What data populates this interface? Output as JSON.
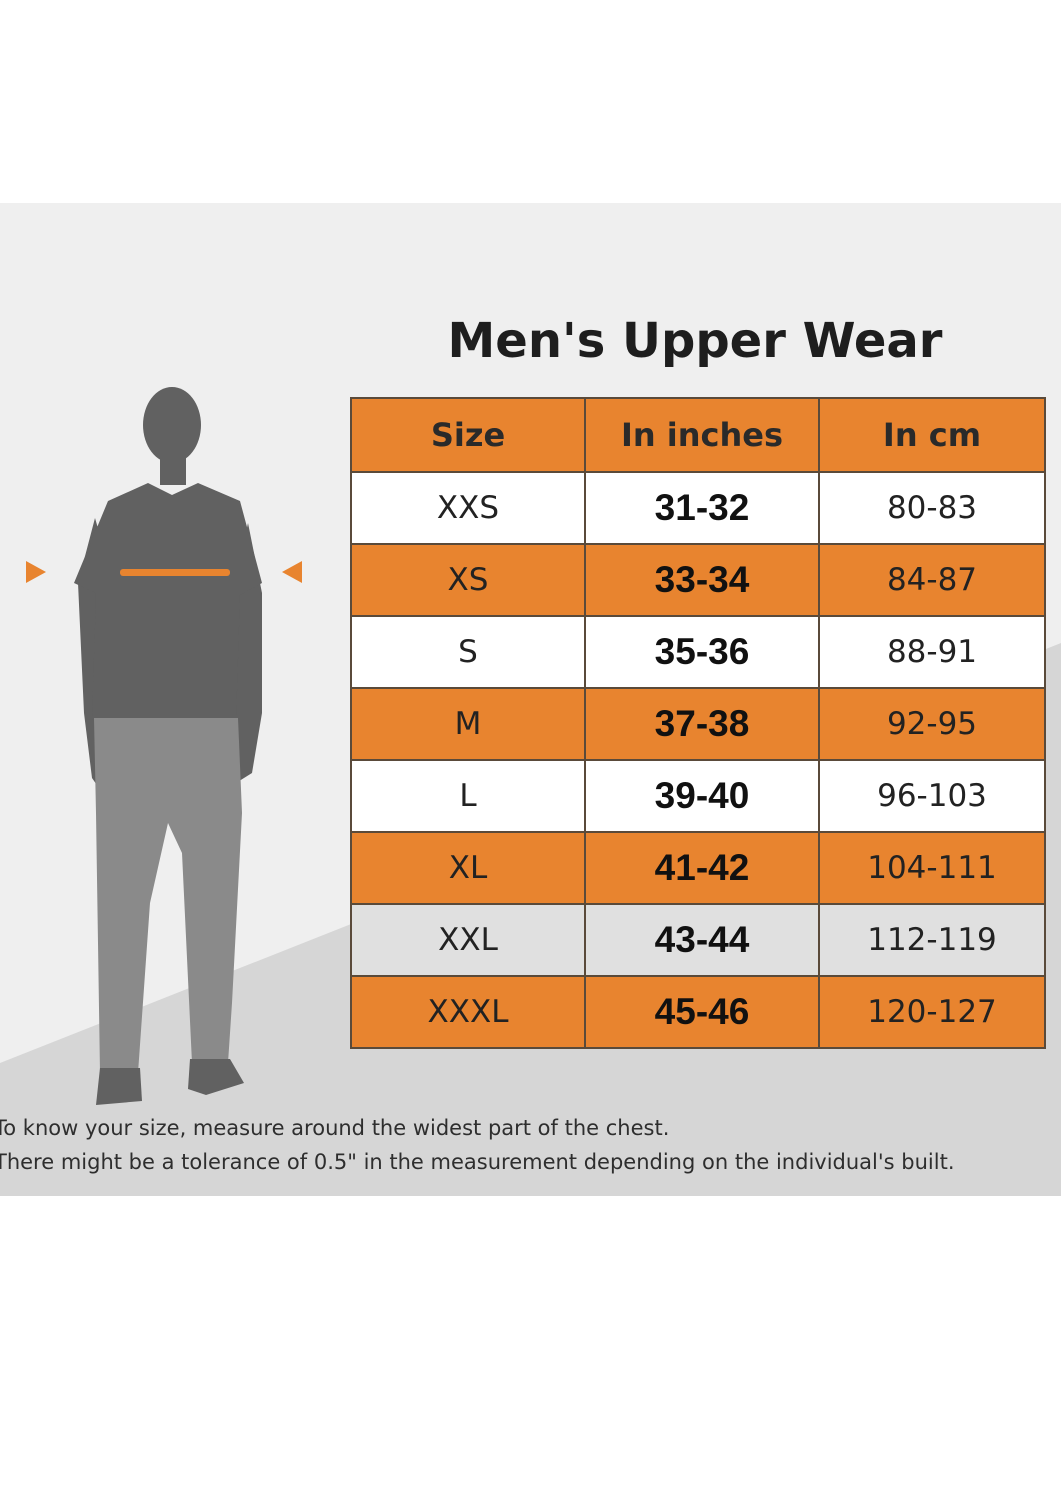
{
  "title": "Men's Upper Wear",
  "table": {
    "headers": [
      "Size",
      "In inches",
      "In cm"
    ],
    "rows": [
      {
        "size": "XXS",
        "inches": "31-32",
        "cm": "80-83",
        "style": "white"
      },
      {
        "size": "XS",
        "inches": "33-34",
        "cm": "84-87",
        "style": "orange"
      },
      {
        "size": "S",
        "inches": "35-36",
        "cm": "88-91",
        "style": "white"
      },
      {
        "size": "M",
        "inches": "37-38",
        "cm": "92-95",
        "style": "orange"
      },
      {
        "size": "L",
        "inches": "39-40",
        "cm": "96-103",
        "style": "white"
      },
      {
        "size": "XL",
        "inches": "41-42",
        "cm": "104-111",
        "style": "orange"
      },
      {
        "size": "XXL",
        "inches": "43-44",
        "cm": "112-119",
        "style": "grey"
      },
      {
        "size": "XXXL",
        "inches": "45-46",
        "cm": "120-127",
        "style": "orange"
      }
    ]
  },
  "notes": [
    "To know your size, measure around the widest part of the chest.",
    "There might be a tolerance of 0.5\" in the measurement depending on the individual's built."
  ],
  "colors": {
    "accent": "#e8842f",
    "panel": "#efefef",
    "floor": "#d6d6d6",
    "figure_shirt": "#616161",
    "figure_pants": "#8a8a8a"
  },
  "icons": {
    "left_marker": "triangle-right-icon",
    "right_marker": "triangle-left-icon",
    "figure": "man-silhouette-icon"
  }
}
